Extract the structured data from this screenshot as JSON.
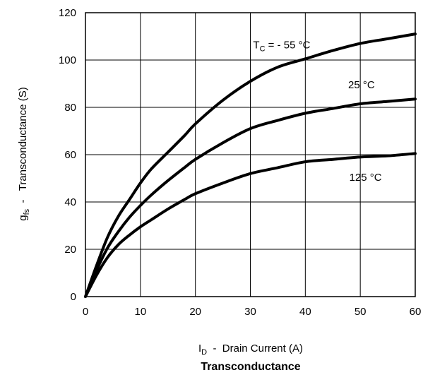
{
  "chart_data": {
    "type": "line",
    "title": "Transconductance",
    "xlabel": {
      "main": "I",
      "sub": "D",
      "rest": "  -  Drain Current (A)"
    },
    "ylabel": {
      "main": "g",
      "sub": "fs",
      "rest": "  -   Transconductance (S)"
    },
    "xlim": [
      0,
      60
    ],
    "ylim": [
      0,
      120
    ],
    "xticks": [
      "0",
      "10",
      "20",
      "30",
      "40",
      "50",
      "60"
    ],
    "yticks": [
      "0",
      "20",
      "40",
      "60",
      "80",
      "100",
      "120"
    ],
    "grid": true,
    "series": [
      {
        "name": {
          "main": "T",
          "sub": "C",
          "rest": " = - 55 °C"
        },
        "x": [
          0,
          2,
          4,
          6,
          8,
          10,
          12,
          15,
          18,
          20,
          25,
          30,
          35,
          40,
          45,
          50,
          55,
          60
        ],
        "y": [
          0,
          13,
          25,
          34,
          41,
          48,
          54,
          61,
          68,
          73,
          83,
          91,
          97,
          100.5,
          104,
          107,
          109,
          111
        ]
      },
      {
        "name": {
          "main": "",
          "sub": "",
          "rest": "25 °C"
        },
        "x": [
          0,
          2,
          4,
          6,
          8,
          10,
          12,
          15,
          18,
          20,
          25,
          30,
          35,
          40,
          45,
          50,
          55,
          60
        ],
        "y": [
          0,
          11,
          20.5,
          27.5,
          33.5,
          38.5,
          43,
          49,
          54.5,
          58,
          65,
          71,
          74.5,
          77.5,
          79.5,
          81.5,
          82.5,
          83.5
        ]
      },
      {
        "name": {
          "main": "",
          "sub": "",
          "rest": "125 °C"
        },
        "x": [
          0,
          2,
          4,
          6,
          8,
          10,
          12,
          15,
          18,
          20,
          25,
          30,
          35,
          40,
          45,
          50,
          55,
          60
        ],
        "y": [
          0,
          9,
          16.5,
          22,
          26,
          29.5,
          32.5,
          37,
          41,
          43.5,
          48,
          52,
          54.5,
          57,
          58,
          59,
          59.5,
          60.5
        ]
      }
    ]
  }
}
